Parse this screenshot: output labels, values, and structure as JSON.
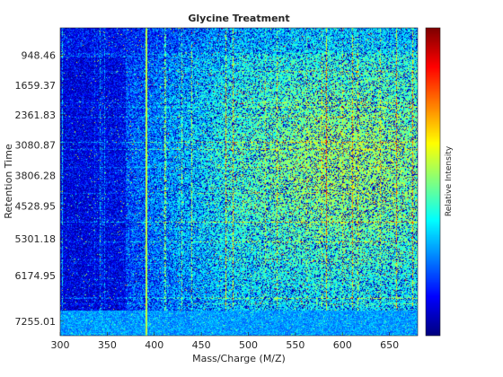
{
  "chart_data": {
    "type": "heatmap",
    "title": "Glycine Treatment",
    "xlabel": "Mass/Charge (M/Z)",
    "ylabel": "Retention Time",
    "colorbar_label": "Relative Intensity",
    "colormap": "jet",
    "xlim": [
      300,
      680
    ],
    "x_ticks": [
      300,
      350,
      400,
      450,
      500,
      550,
      600,
      650
    ],
    "x_tick_labels": [
      "300",
      "350",
      "400",
      "450",
      "500",
      "550",
      "600",
      "650"
    ],
    "ylim": [
      300,
      7600
    ],
    "y_direction": "reversed",
    "y_ticks": [
      948.46,
      1659.37,
      2361.83,
      3080.87,
      3806.28,
      4528.95,
      5301.18,
      6174.95,
      7255.01
    ],
    "y_tick_labels": [
      "948.46",
      "1659.37",
      "2361.83",
      "3080.87",
      "3806.28",
      "4528.95",
      "5301.18",
      "6174.95",
      "7255.01"
    ],
    "grid": false,
    "colorbar": "right",
    "features": {
      "vertical_streak_mz": 392,
      "horizontal_streak_rt": 1300,
      "dense_bottom_band_rt_min": 7000,
      "high_intensity_region": {
        "mz_range": [
          450,
          680
        ],
        "rt_range": [
          1400,
          6300
        ]
      },
      "low_intensity_region": {
        "mz_range": [
          300,
          370
        ],
        "rt_range": [
          1000,
          7000
        ]
      }
    }
  }
}
